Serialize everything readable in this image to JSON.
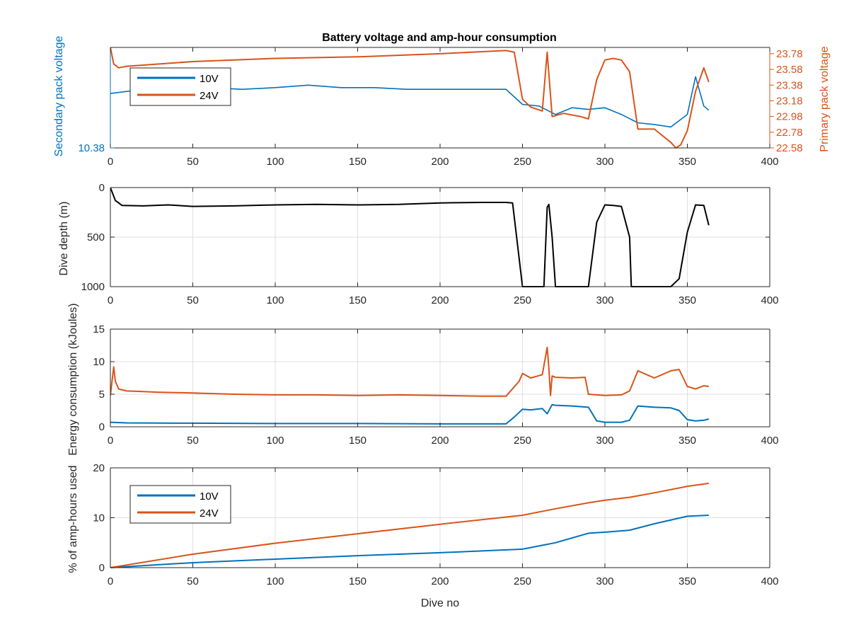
{
  "chart_data": [
    {
      "type": "line",
      "title": "Battery voltage and amp-hour consumption",
      "xlabel": "",
      "xlim": [
        0,
        400
      ],
      "xticks": [
        0,
        50,
        100,
        150,
        200,
        250,
        300,
        350,
        400
      ],
      "grid": false,
      "legend_position": "top-left",
      "left_axis": {
        "label": "Secondary pack voltage",
        "color": "#0072BD",
        "tick_labels": [
          "10.38"
        ],
        "ylim": [
          10.38,
          10.5
        ]
      },
      "right_axis": {
        "label": "Primary pack voltage",
        "color": "#D95319",
        "tick_labels": [
          "22.58",
          "22.78",
          "22.98",
          "23.18",
          "23.38",
          "23.58",
          "23.78"
        ],
        "ylim": [
          22.58,
          23.86
        ]
      },
      "series": [
        {
          "name": "10V",
          "axis": "left",
          "color": "#0072BD",
          "x": [
            0,
            20,
            40,
            60,
            80,
            100,
            120,
            140,
            160,
            180,
            200,
            220,
            240,
            250,
            260,
            270,
            280,
            290,
            300,
            310,
            320,
            330,
            340,
            350,
            355,
            360,
            363
          ],
          "y": [
            10.445,
            10.45,
            10.45,
            10.452,
            10.45,
            10.452,
            10.455,
            10.452,
            10.452,
            10.45,
            10.45,
            10.45,
            10.45,
            10.432,
            10.43,
            10.42,
            10.428,
            10.426,
            10.428,
            10.42,
            10.41,
            10.408,
            10.405,
            10.42,
            10.465,
            10.43,
            10.425
          ]
        },
        {
          "name": "24V",
          "axis": "right",
          "color": "#D95319",
          "x": [
            0,
            2,
            5,
            10,
            50,
            100,
            150,
            200,
            240,
            245,
            250,
            255,
            262,
            265,
            268,
            275,
            285,
            290,
            295,
            300,
            305,
            310,
            315,
            320,
            330,
            340,
            343,
            346,
            350,
            355,
            360,
            363
          ],
          "y": [
            23.86,
            23.65,
            23.6,
            23.62,
            23.68,
            23.72,
            23.74,
            23.78,
            23.82,
            23.8,
            23.2,
            23.1,
            23.05,
            23.8,
            22.98,
            23.02,
            22.98,
            22.95,
            23.45,
            23.7,
            23.72,
            23.7,
            23.55,
            22.82,
            22.82,
            22.65,
            22.58,
            22.62,
            22.8,
            23.3,
            23.6,
            23.42
          ]
        }
      ]
    },
    {
      "type": "line",
      "xlabel": "",
      "ylabel": "Dive depth (m)",
      "xlim": [
        0,
        400
      ],
      "ylim": [
        0,
        1000
      ],
      "y_reversed": true,
      "xticks": [
        0,
        50,
        100,
        150,
        200,
        250,
        300,
        350,
        400
      ],
      "yticks": [
        0,
        500,
        1000
      ],
      "grid": true,
      "series": [
        {
          "color": "#000000",
          "x": [
            0,
            3,
            7,
            20,
            35,
            50,
            75,
            100,
            125,
            150,
            175,
            200,
            225,
            240,
            244,
            250,
            263,
            265,
            266,
            268,
            270,
            280,
            290,
            295,
            300,
            305,
            310,
            315,
            316,
            320,
            340,
            345,
            350,
            355,
            360,
            363
          ],
          "y": [
            0,
            130,
            180,
            185,
            175,
            190,
            185,
            175,
            170,
            175,
            170,
            155,
            150,
            150,
            155,
            1000,
            1000,
            200,
            170,
            500,
            1000,
            1000,
            1000,
            350,
            175,
            180,
            190,
            500,
            1000,
            1000,
            1000,
            920,
            450,
            175,
            180,
            380
          ]
        }
      ]
    },
    {
      "type": "line",
      "xlabel": "",
      "ylabel": "Energy consumption (kJoules)",
      "xlim": [
        0,
        400
      ],
      "ylim": [
        0,
        15
      ],
      "xticks": [
        0,
        50,
        100,
        150,
        200,
        250,
        300,
        350,
        400
      ],
      "yticks": [
        0,
        5,
        10,
        15
      ],
      "grid": true,
      "series": [
        {
          "color": "#D95319",
          "x": [
            0,
            2,
            3,
            5,
            10,
            20,
            30,
            50,
            75,
            100,
            125,
            150,
            175,
            200,
            225,
            240,
            248,
            250,
            255,
            262,
            265,
            266,
            267,
            268,
            270,
            280,
            288,
            290,
            300,
            310,
            315,
            320,
            330,
            340,
            345,
            350,
            355,
            360,
            363
          ],
          "y": [
            4.8,
            9.2,
            7.0,
            5.8,
            5.5,
            5.4,
            5.3,
            5.2,
            5.0,
            4.9,
            4.9,
            4.8,
            4.9,
            4.8,
            4.7,
            4.7,
            7.0,
            8.2,
            7.5,
            8.0,
            12.2,
            9.0,
            4.8,
            7.8,
            7.6,
            7.5,
            7.6,
            5.0,
            4.8,
            4.9,
            5.5,
            8.6,
            7.5,
            8.6,
            8.8,
            6.2,
            5.8,
            6.3,
            6.2
          ]
        },
        {
          "color": "#0072BD",
          "x": [
            0,
            10,
            50,
            100,
            150,
            200,
            240,
            245,
            250,
            255,
            262,
            265,
            268,
            270,
            280,
            290,
            295,
            300,
            310,
            315,
            320,
            330,
            340,
            345,
            350,
            355,
            360,
            363
          ],
          "y": [
            0.7,
            0.6,
            0.55,
            0.5,
            0.5,
            0.45,
            0.45,
            1.5,
            2.7,
            2.6,
            2.8,
            2.0,
            3.4,
            3.3,
            3.2,
            3.0,
            0.9,
            0.7,
            0.7,
            1.0,
            3.2,
            3.0,
            2.9,
            2.5,
            1.1,
            0.9,
            1.0,
            1.2
          ]
        }
      ]
    },
    {
      "type": "line",
      "xlabel": "Dive no",
      "ylabel": "% of amp-hours used",
      "xlim": [
        0,
        400
      ],
      "ylim": [
        0,
        20
      ],
      "xticks": [
        0,
        50,
        100,
        150,
        200,
        250,
        300,
        350,
        400
      ],
      "yticks": [
        0,
        10,
        20
      ],
      "grid": true,
      "legend_position": "top-left",
      "series": [
        {
          "name": "10V",
          "color": "#0072BD",
          "x": [
            0,
            50,
            100,
            150,
            200,
            250,
            270,
            290,
            300,
            315,
            330,
            350,
            363
          ],
          "y": [
            0,
            1.0,
            1.7,
            2.4,
            3.0,
            3.7,
            5.0,
            6.9,
            7.1,
            7.5,
            8.8,
            10.3,
            10.5
          ]
        },
        {
          "name": "24V",
          "color": "#D95319",
          "x": [
            0,
            50,
            100,
            150,
            200,
            250,
            270,
            290,
            300,
            315,
            330,
            350,
            363
          ],
          "y": [
            0,
            2.7,
            4.9,
            6.8,
            8.7,
            10.5,
            11.8,
            13.0,
            13.5,
            14.1,
            15.0,
            16.3,
            16.9
          ]
        }
      ]
    }
  ]
}
